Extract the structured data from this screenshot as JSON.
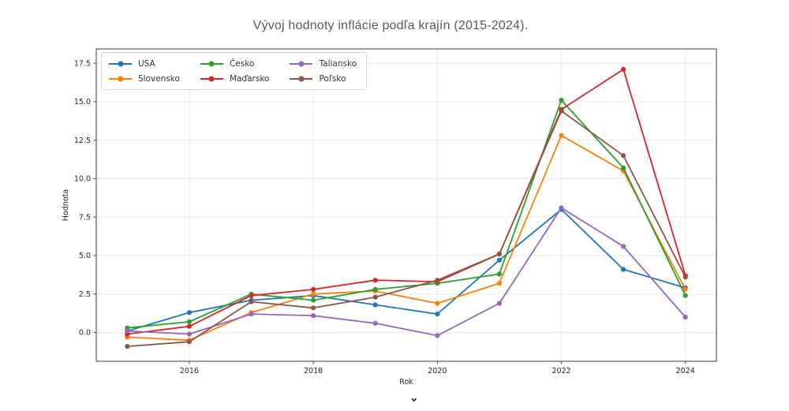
{
  "title": "Vývoj hodnoty inflácie podľa krajín (2015-2024).",
  "bottom_fragment": "ˇ",
  "colors": {
    "usa": "#1f77b4",
    "slovensko": "#ff7f0e",
    "cesko": "#2ca02c",
    "madarsko": "#d62728",
    "taliansko": "#9467bd",
    "polsko": "#8c564b",
    "grid": "#e8e8e8",
    "spine": "#4a4a4a",
    "tick_text": "#262626",
    "title_text": "#595959"
  },
  "chart_data": {
    "type": "line",
    "title": "Vývoj hodnoty inflácie podľa krajín (2015-2024).",
    "xlabel": "Rok",
    "ylabel": "Hodnota",
    "x": [
      2015,
      2016,
      2017,
      2018,
      2019,
      2020,
      2021,
      2022,
      2023,
      2024
    ],
    "series": [
      {
        "name": "USA",
        "color": "#1f77b4",
        "values": [
          0.1,
          1.3,
          2.1,
          2.4,
          1.8,
          1.2,
          4.7,
          8.0,
          4.1,
          2.9
        ]
      },
      {
        "name": "Slovensko",
        "color": "#ff7f0e",
        "values": [
          -0.3,
          -0.5,
          1.3,
          2.5,
          2.7,
          1.9,
          3.2,
          12.8,
          10.5,
          2.8
        ]
      },
      {
        "name": "Česko",
        "color": "#2ca02c",
        "values": [
          0.3,
          0.7,
          2.5,
          2.1,
          2.8,
          3.2,
          3.8,
          15.1,
          10.7,
          2.4
        ]
      },
      {
        "name": "Maďarsko",
        "color": "#d62728",
        "values": [
          -0.1,
          0.4,
          2.4,
          2.8,
          3.4,
          3.3,
          5.1,
          14.5,
          17.1,
          3.7
        ]
      },
      {
        "name": "Taliansko",
        "color": "#9467bd",
        "values": [
          0.1,
          -0.1,
          1.2,
          1.1,
          0.6,
          -0.2,
          1.9,
          8.1,
          5.6,
          1.0
        ]
      },
      {
        "name": "Poľsko",
        "color": "#8c564b",
        "values": [
          -0.9,
          -0.6,
          2.0,
          1.6,
          2.3,
          3.4,
          5.1,
          14.4,
          11.5,
          3.6
        ]
      }
    ],
    "xticks": [
      2016,
      2018,
      2020,
      2022,
      2024
    ],
    "yticks": [
      0.0,
      2.5,
      5.0,
      7.5,
      10.0,
      12.5,
      15.0,
      17.5
    ],
    "xlim": [
      2014.5,
      2024.5
    ],
    "ylim": [
      -1.87,
      18.43
    ],
    "grid": true,
    "legend_position": "upper left",
    "legend_rows": 2,
    "legend_order": [
      "USA",
      "Slovensko",
      "Česko",
      "Maďarsko",
      "Taliansko",
      "Poľsko"
    ]
  }
}
